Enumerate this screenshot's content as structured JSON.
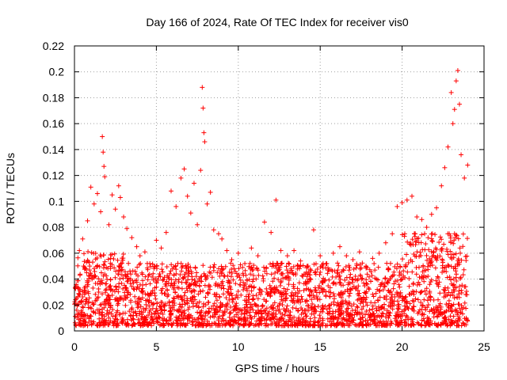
{
  "chart_data": {
    "type": "scatter",
    "title": "Day 166 of 2024, Rate Of TEC Index for receiver vis0",
    "xlabel": "GPS time / hours",
    "ylabel": "ROTI / TECUs",
    "xlim": [
      0,
      25
    ],
    "ylim": [
      0,
      0.22
    ],
    "x_ticks": [
      0,
      5,
      10,
      15,
      20,
      25
    ],
    "x_tick_labels": [
      "0",
      "5",
      "10",
      "15",
      "20",
      "25"
    ],
    "y_ticks": [
      0,
      0.02,
      0.04,
      0.06,
      0.08,
      0.1,
      0.12,
      0.14,
      0.16,
      0.18,
      0.2,
      0.22
    ],
    "y_tick_labels": [
      "0",
      "0.02",
      "0.04",
      "0.06",
      "0.08",
      "0.1",
      "0.12",
      "0.14",
      "0.16",
      "0.18",
      "0.2",
      "0.22"
    ],
    "grid": true,
    "legend": "none",
    "marker": "plus",
    "color": "#ff0000",
    "series": [
      {
        "name": "ROTI",
        "points": [
          [
            0.3,
            0.062
          ],
          [
            0.5,
            0.071
          ],
          [
            0.8,
            0.085
          ],
          [
            1.0,
            0.111
          ],
          [
            1.2,
            0.098
          ],
          [
            1.4,
            0.106
          ],
          [
            1.6,
            0.092
          ],
          [
            1.7,
            0.15
          ],
          [
            1.75,
            0.138
          ],
          [
            1.8,
            0.127
          ],
          [
            1.85,
            0.119
          ],
          [
            2.1,
            0.082
          ],
          [
            2.3,
            0.105
          ],
          [
            2.5,
            0.094
          ],
          [
            2.7,
            0.112
          ],
          [
            2.8,
            0.103
          ],
          [
            3.0,
            0.088
          ],
          [
            3.2,
            0.079
          ],
          [
            3.5,
            0.072
          ],
          [
            3.8,
            0.065
          ],
          [
            4.0,
            0.058
          ],
          [
            4.3,
            0.061
          ],
          [
            4.6,
            0.052
          ],
          [
            5.0,
            0.07
          ],
          [
            5.3,
            0.064
          ],
          [
            5.6,
            0.076
          ],
          [
            5.9,
            0.108
          ],
          [
            6.2,
            0.096
          ],
          [
            6.5,
            0.118
          ],
          [
            6.7,
            0.125
          ],
          [
            6.9,
            0.104
          ],
          [
            7.1,
            0.091
          ],
          [
            7.3,
            0.114
          ],
          [
            7.5,
            0.082
          ],
          [
            7.7,
            0.124
          ],
          [
            7.8,
            0.188
          ],
          [
            7.85,
            0.172
          ],
          [
            7.9,
            0.153
          ],
          [
            7.95,
            0.146
          ],
          [
            8.1,
            0.098
          ],
          [
            8.3,
            0.107
          ],
          [
            8.5,
            0.078
          ],
          [
            8.8,
            0.075
          ],
          [
            9.0,
            0.071
          ],
          [
            9.3,
            0.062
          ],
          [
            9.6,
            0.055
          ],
          [
            10.0,
            0.06
          ],
          [
            10.4,
            0.052
          ],
          [
            10.8,
            0.064
          ],
          [
            11.2,
            0.058
          ],
          [
            11.6,
            0.084
          ],
          [
            12.0,
            0.076
          ],
          [
            12.3,
            0.101
          ],
          [
            12.6,
            0.062
          ],
          [
            13.0,
            0.058
          ],
          [
            13.4,
            0.062
          ],
          [
            13.8,
            0.054
          ],
          [
            14.2,
            0.05
          ],
          [
            14.6,
            0.078
          ],
          [
            15.0,
            0.058
          ],
          [
            15.4,
            0.052
          ],
          [
            15.8,
            0.06
          ],
          [
            16.2,
            0.065
          ],
          [
            16.6,
            0.058
          ],
          [
            17.0,
            0.055
          ],
          [
            17.4,
            0.061
          ],
          [
            17.8,
            0.05
          ],
          [
            18.2,
            0.056
          ],
          [
            18.6,
            0.06
          ],
          [
            19.0,
            0.068
          ],
          [
            19.4,
            0.075
          ],
          [
            19.7,
            0.096
          ],
          [
            20.0,
            0.099
          ],
          [
            20.3,
            0.101
          ],
          [
            20.6,
            0.104
          ],
          [
            20.9,
            0.088
          ],
          [
            21.2,
            0.086
          ],
          [
            21.5,
            0.08
          ],
          [
            21.8,
            0.09
          ],
          [
            22.1,
            0.095
          ],
          [
            22.4,
            0.112
          ],
          [
            22.6,
            0.126
          ],
          [
            22.8,
            0.142
          ],
          [
            23.0,
            0.184
          ],
          [
            23.1,
            0.16
          ],
          [
            23.2,
            0.171
          ],
          [
            23.3,
            0.193
          ],
          [
            23.4,
            0.201
          ],
          [
            23.5,
            0.175
          ],
          [
            23.6,
            0.136
          ],
          [
            23.8,
            0.118
          ],
          [
            24.0,
            0.128
          ]
        ]
      }
    ]
  }
}
